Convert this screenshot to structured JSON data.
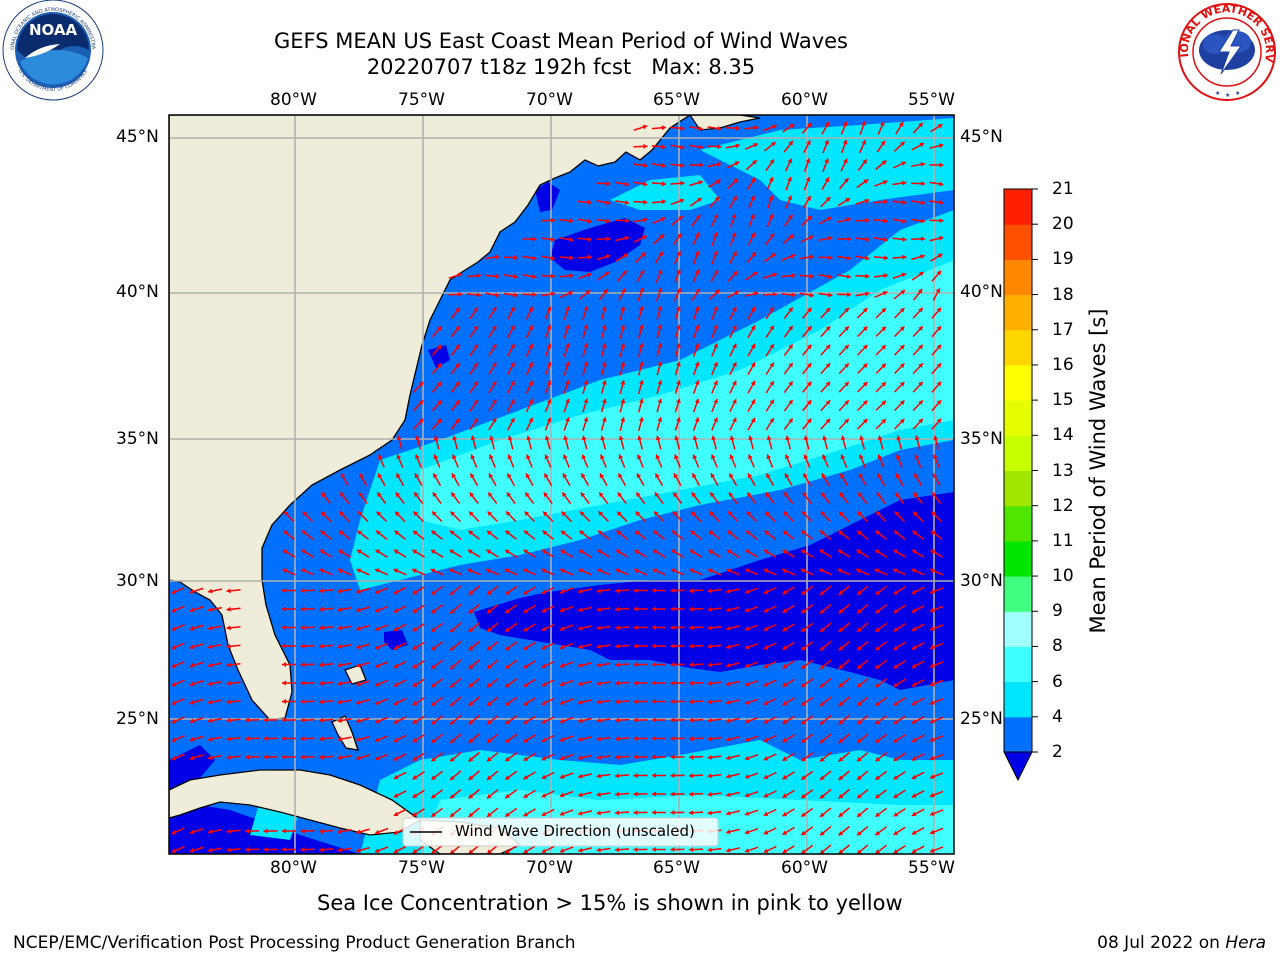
{
  "title": {
    "line1": "GEFS MEAN US East Coast Mean Period of Wind Waves",
    "line2": "20220707 t18z 192h fcst   Max: 8.35"
  },
  "logos": {
    "left": {
      "text": "NOAA",
      "ring_top": "NATIONAL OCEANIC AND ATMOSPHERIC ADMINISTRATION",
      "ring_bottom": "U.S. DEPARTMENT OF COMMERCE"
    },
    "right": {
      "ring_top": "NATIONAL WEATHER SERVICE",
      "icon": "lightning-cloud-icon"
    }
  },
  "map": {
    "lon_labels": [
      "80°W",
      "75°W",
      "70°W",
      "65°W",
      "60°W",
      "55°W"
    ],
    "lat_labels": [
      "45°N",
      "40°N",
      "35°N",
      "30°N",
      "25°N"
    ],
    "extent": {
      "lon": [
        -85,
        -54.3
      ],
      "lat": [
        20.5,
        45.8
      ]
    },
    "legend_label": "Wind Wave Direction (unscaled)",
    "colors": {
      "land": "#efedda",
      "arrow": "#ff0000",
      "grid": "#b0b0b0"
    }
  },
  "colorbar": {
    "label": "Mean Period of Wind Waves [s]",
    "ticks": [
      "2",
      "4",
      "6",
      "8",
      "9",
      "10",
      "11",
      "12",
      "13",
      "14",
      "15",
      "16",
      "17",
      "18",
      "19",
      "20",
      "21"
    ],
    "colors": [
      "#0070ff",
      "#00e6ff",
      "#40ffff",
      "#a0ffff",
      "#40ff80",
      "#00e600",
      "#50e600",
      "#a0e600",
      "#c8ff00",
      "#e6ff00",
      "#ffff00",
      "#ffd700",
      "#ffb000",
      "#ff8800",
      "#ff5000",
      "#ff2000"
    ],
    "under_color": "#0000e6"
  },
  "footer": {
    "note": "Sea Ice Concentration > 15% is shown in pink to yellow",
    "credit": "NCEP/EMC/Verification Post Processing Product Generation Branch",
    "date": "08 Jul 2022 on",
    "host": "Hera"
  }
}
